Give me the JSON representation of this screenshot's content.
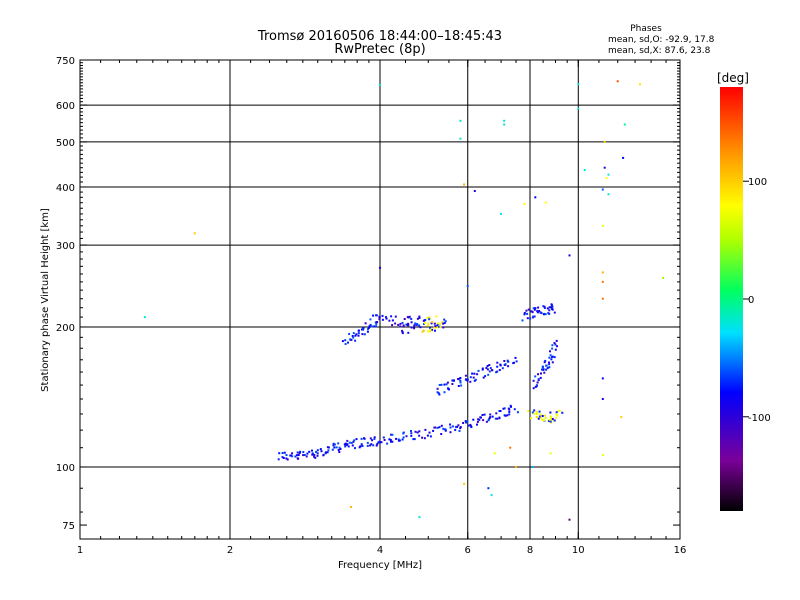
{
  "chart_data": {
    "type": "scatter",
    "title": "Tromsø 20160506 18:44:00–18:45:43",
    "subtitle": "RwPretec (8p)",
    "xlabel": "Frequency [MHz]",
    "ylabel": "Stationary phase Virtual Height [km]",
    "x_scale": "log",
    "y_scale": "log",
    "xlim": [
      1,
      16
    ],
    "ylim": [
      70,
      750
    ],
    "x_ticks": [
      1,
      2,
      4,
      6,
      8,
      10,
      16
    ],
    "x_tick_labels": [
      "1",
      "2",
      "4",
      "6",
      "8",
      "10",
      "16"
    ],
    "y_ticks": [
      75,
      100,
      200,
      300,
      400,
      500,
      600,
      750
    ],
    "y_tick_labels": [
      "75",
      "100",
      "200",
      "300",
      "400",
      "500",
      "600",
      "750"
    ],
    "grid_x": [
      2,
      4,
      6,
      8,
      10
    ],
    "grid_y": [
      100,
      200,
      300,
      400,
      500,
      600
    ],
    "stats_title": "Phases",
    "stats_o": "mean, sd,O: -92.9, 17.8",
    "stats_x": "mean, sd,X:  87.6, 23.8",
    "colorbar": {
      "label": "[deg]",
      "range": [
        -180,
        180
      ],
      "ticks": [
        100,
        0,
        -100
      ],
      "tick_labels": [
        "100",
        "0",
        "-100"
      ],
      "colormap": "rainbow (black-violet-blue-cyan-green-yellow-red)"
    },
    "traces": [
      {
        "name": "",
        "points": [
          [
            2.5,
            106
          ],
          [
            2.7,
            105
          ],
          [
            2.9,
            107
          ],
          [
            3.1,
            108
          ],
          [
            3.3,
            110
          ],
          [
            3.5,
            112
          ],
          [
            3.8,
            113
          ],
          [
            4.1,
            114
          ],
          [
            4.5,
            116
          ],
          [
            5.0,
            118
          ],
          [
            5.5,
            121
          ],
          [
            6.0,
            124
          ],
          [
            6.5,
            127
          ],
          [
            7.0,
            130
          ],
          [
            7.5,
            134
          ]
        ]
      },
      {
        "name": "",
        "points": [
          [
            3.4,
            188
          ],
          [
            3.6,
            192
          ],
          [
            3.8,
            200
          ],
          [
            4.0,
            210
          ],
          [
            4.4,
            204
          ],
          [
            4.8,
            206
          ],
          [
            5.2,
            208
          ]
        ]
      },
      {
        "name": "",
        "points": [
          [
            4.4,
            198
          ],
          [
            4.8,
            199
          ],
          [
            5.2,
            201
          ],
          [
            5.4,
            205
          ]
        ]
      },
      {
        "name": "",
        "points": [
          [
            5.2,
            145
          ],
          [
            5.6,
            150
          ],
          [
            6.0,
            155
          ],
          [
            6.5,
            160
          ],
          [
            7.0,
            165
          ],
          [
            7.5,
            170
          ]
        ]
      },
      {
        "name": "",
        "points": [
          [
            7.8,
            210
          ],
          [
            8.2,
            215
          ],
          [
            8.6,
            218
          ],
          [
            9.0,
            220
          ]
        ]
      },
      {
        "name": "",
        "points": [
          [
            8.0,
            130
          ],
          [
            8.4,
            128
          ],
          [
            8.8,
            127
          ],
          [
            9.2,
            130
          ]
        ]
      },
      {
        "name": "",
        "points": [
          [
            8.2,
            150
          ],
          [
            8.5,
            160
          ],
          [
            8.8,
            170
          ],
          [
            9.0,
            185
          ]
        ]
      }
    ],
    "scatter_points": [
      {
        "x": 1.35,
        "y": 210,
        "phase": -40
      },
      {
        "x": 1.7,
        "y": 318,
        "phase": 120
      },
      {
        "x": 4.0,
        "y": 663,
        "phase": -30
      },
      {
        "x": 5.8,
        "y": 555,
        "phase": -30
      },
      {
        "x": 5.8,
        "y": 508,
        "phase": -30
      },
      {
        "x": 7.1,
        "y": 555,
        "phase": -40
      },
      {
        "x": 7.1,
        "y": 545,
        "phase": -40
      },
      {
        "x": 10.0,
        "y": 665,
        "phase": -40
      },
      {
        "x": 10.0,
        "y": 590,
        "phase": -40
      },
      {
        "x": 12.0,
        "y": 675,
        "phase": 160
      },
      {
        "x": 13.3,
        "y": 665,
        "phase": 110
      },
      {
        "x": 12.4,
        "y": 545,
        "phase": -20
      },
      {
        "x": 11.3,
        "y": 500,
        "phase": 120
      },
      {
        "x": 12.3,
        "y": 462,
        "phase": -100
      },
      {
        "x": 10.3,
        "y": 435,
        "phase": -30
      },
      {
        "x": 11.3,
        "y": 440,
        "phase": -110
      },
      {
        "x": 11.5,
        "y": 425,
        "phase": -40
      },
      {
        "x": 11.4,
        "y": 418,
        "phase": 100
      },
      {
        "x": 5.9,
        "y": 405,
        "phase": 130
      },
      {
        "x": 6.2,
        "y": 392,
        "phase": -110
      },
      {
        "x": 11.2,
        "y": 395,
        "phase": -80
      },
      {
        "x": 11.5,
        "y": 386,
        "phase": -40
      },
      {
        "x": 8.2,
        "y": 380,
        "phase": -100
      },
      {
        "x": 8.6,
        "y": 370,
        "phase": 100
      },
      {
        "x": 7.8,
        "y": 368,
        "phase": 100
      },
      {
        "x": 7.0,
        "y": 350,
        "phase": -50
      },
      {
        "x": 11.2,
        "y": 330,
        "phase": 90
      },
      {
        "x": 9.6,
        "y": 285,
        "phase": -110
      },
      {
        "x": 11.2,
        "y": 262,
        "phase": 130
      },
      {
        "x": 11.2,
        "y": 250,
        "phase": 150
      },
      {
        "x": 14.8,
        "y": 255,
        "phase": 40
      },
      {
        "x": 11.2,
        "y": 230,
        "phase": 150
      },
      {
        "x": 4.0,
        "y": 268,
        "phase": -110
      },
      {
        "x": 6.0,
        "y": 245,
        "phase": -80
      },
      {
        "x": 11.2,
        "y": 155,
        "phase": -100
      },
      {
        "x": 11.2,
        "y": 140,
        "phase": -110
      },
      {
        "x": 12.2,
        "y": 128,
        "phase": 120
      },
      {
        "x": 11.2,
        "y": 106,
        "phase": 90
      },
      {
        "x": 3.5,
        "y": 82,
        "phase": 130
      },
      {
        "x": 4.8,
        "y": 78,
        "phase": -40
      },
      {
        "x": 5.9,
        "y": 92,
        "phase": 120
      },
      {
        "x": 6.6,
        "y": 90,
        "phase": -90
      },
      {
        "x": 6.7,
        "y": 87,
        "phase": -40
      },
      {
        "x": 9.6,
        "y": 77,
        "phase": -150
      },
      {
        "x": 7.5,
        "y": 100,
        "phase": 130
      },
      {
        "x": 8.1,
        "y": 100,
        "phase": -60
      },
      {
        "x": 6.8,
        "y": 107,
        "phase": 90
      },
      {
        "x": 7.3,
        "y": 110,
        "phase": 150
      },
      {
        "x": 8.8,
        "y": 107,
        "phase": 90
      }
    ]
  }
}
